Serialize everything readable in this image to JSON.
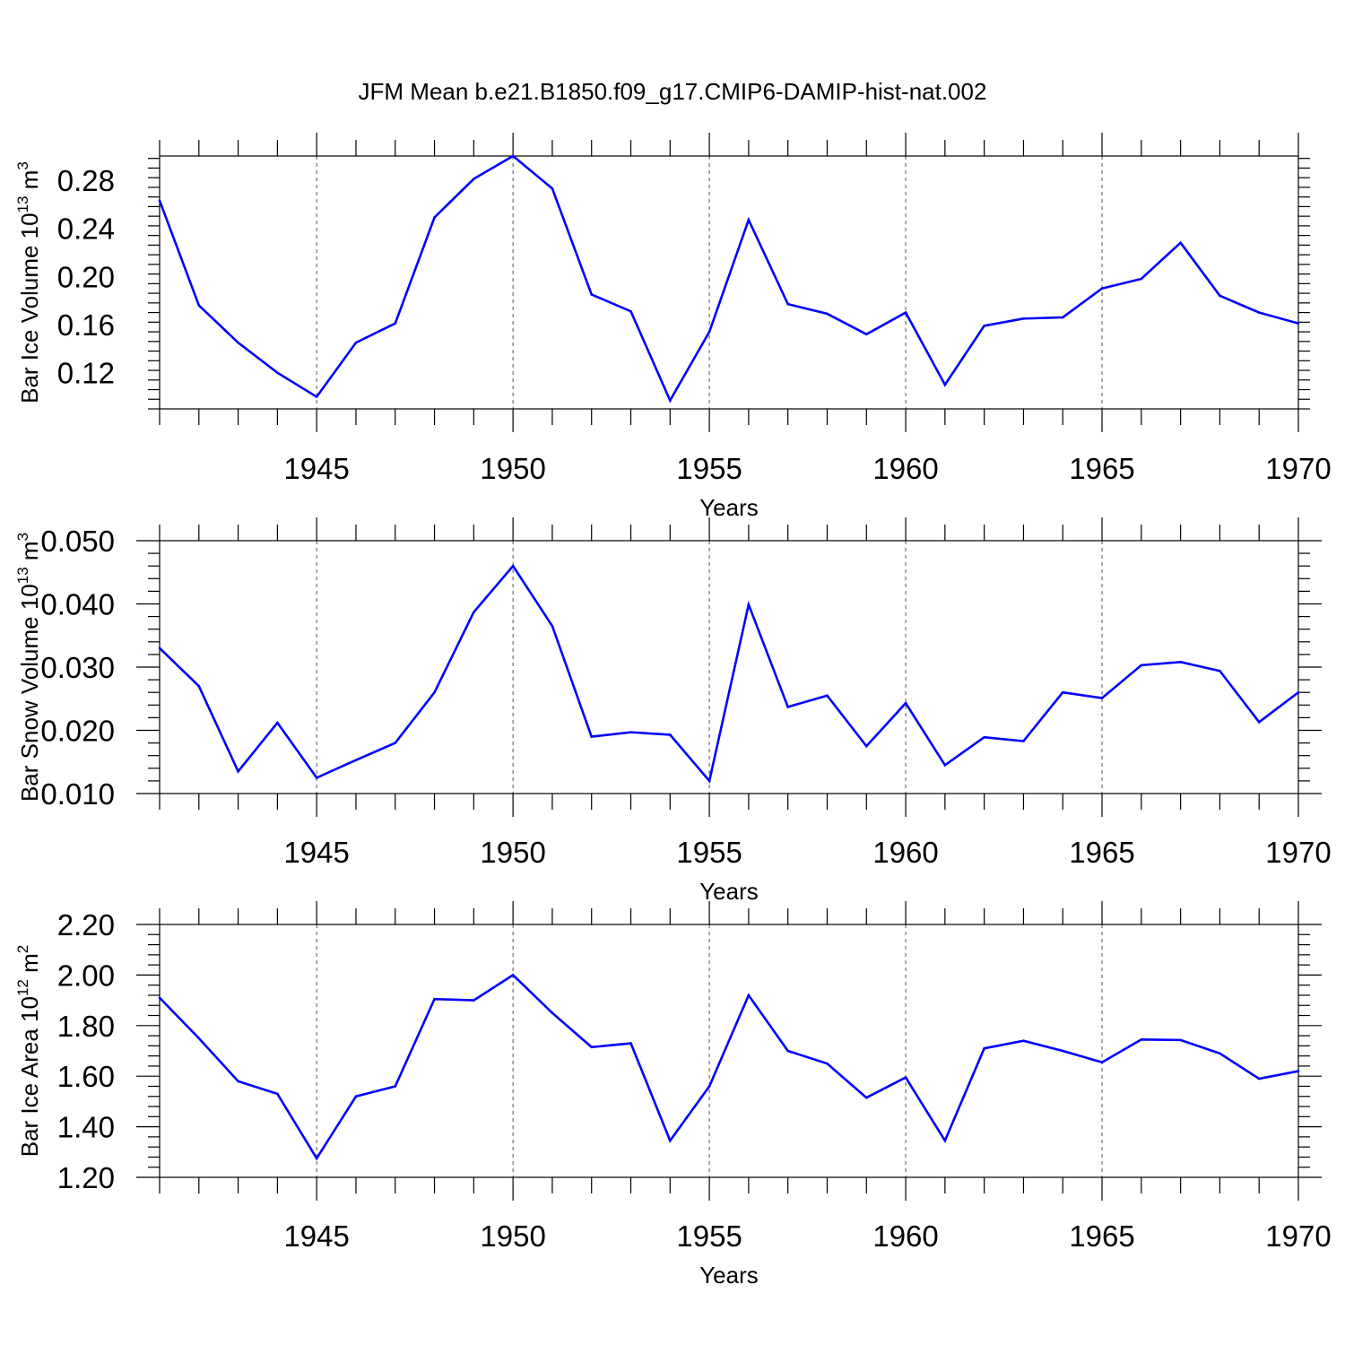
{
  "title": "JFM Mean b.e21.B1850.f09_g17.CMIP6-DAMIP-hist-nat.002",
  "colors": {
    "series": "#0000ff",
    "axes": "#000000",
    "grid": "#555555"
  },
  "chart_data": [
    {
      "type": "line",
      "ylabel": {
        "text": "Bar Ice Volume 10",
        "exp": "13",
        "unit": " m",
        "unit_exp": "3"
      },
      "xlabel": "Years",
      "xlim": [
        1941,
        1970
      ],
      "ylim": [
        0.09,
        0.3
      ],
      "yticks": [
        "0.12",
        "0.16",
        "0.20",
        "0.24",
        "0.28"
      ],
      "xticks": [
        "1945",
        "1950",
        "1955",
        "1960",
        "1965",
        "1970"
      ],
      "grid": "vertical dashed at major x ticks",
      "x": [
        1941,
        1942,
        1943,
        1944,
        1945,
        1946,
        1947,
        1948,
        1949,
        1950,
        1951,
        1952,
        1953,
        1954,
        1955,
        1956,
        1957,
        1958,
        1959,
        1960,
        1961,
        1962,
        1963,
        1964,
        1965,
        1966,
        1967,
        1968,
        1969,
        1970
      ],
      "series": [
        {
          "values": [
            0.263,
            0.176,
            0.145,
            0.12,
            0.1,
            0.145,
            0.161,
            0.249,
            0.281,
            0.3,
            0.273,
            0.185,
            0.171,
            0.097,
            0.154,
            0.247,
            0.177,
            0.169,
            0.152,
            0.17,
            0.11,
            0.159,
            0.165,
            0.166,
            0.19,
            0.198,
            0.228,
            0.184,
            0.17,
            0.161
          ]
        }
      ]
    },
    {
      "type": "line",
      "ylabel": {
        "text": "Bar Snow Volume 10",
        "exp": "13",
        "unit": " m",
        "unit_exp": "3"
      },
      "xlabel": "Years",
      "xlim": [
        1941,
        1970
      ],
      "ylim": [
        0.01,
        0.05
      ],
      "yticks": [
        "0.010",
        "0.020",
        "0.030",
        "0.040",
        "0.050"
      ],
      "xticks": [
        "1945",
        "1950",
        "1955",
        "1960",
        "1965",
        "1970"
      ],
      "grid": "vertical dashed at major x ticks",
      "x": [
        1941,
        1942,
        1943,
        1944,
        1945,
        1946,
        1947,
        1948,
        1949,
        1950,
        1951,
        1952,
        1953,
        1954,
        1955,
        1956,
        1957,
        1958,
        1959,
        1960,
        1961,
        1962,
        1963,
        1964,
        1965,
        1966,
        1967,
        1968,
        1969,
        1970
      ],
      "series": [
        {
          "values": [
            0.033,
            0.027,
            0.0135,
            0.0212,
            0.0125,
            0.0153,
            0.018,
            0.026,
            0.0387,
            0.046,
            0.0365,
            0.019,
            0.0197,
            0.0193,
            0.012,
            0.0399,
            0.0237,
            0.0255,
            0.0175,
            0.0243,
            0.0145,
            0.0189,
            0.0183,
            0.026,
            0.0251,
            0.0303,
            0.0308,
            0.0294,
            0.0213,
            0.026
          ]
        }
      ]
    },
    {
      "type": "line",
      "ylabel": {
        "text": "Bar Ice Area 10",
        "exp": "12",
        "unit": " m",
        "unit_exp": "2"
      },
      "xlabel": "Years",
      "xlim": [
        1941,
        1970
      ],
      "ylim": [
        1.2,
        2.2
      ],
      "yticks": [
        "1.20",
        "1.40",
        "1.60",
        "1.80",
        "2.00",
        "2.20"
      ],
      "xticks": [
        "1945",
        "1950",
        "1955",
        "1960",
        "1965",
        "1970"
      ],
      "grid": "vertical dashed at major x ticks",
      "x": [
        1941,
        1942,
        1943,
        1944,
        1945,
        1946,
        1947,
        1948,
        1949,
        1950,
        1951,
        1952,
        1953,
        1954,
        1955,
        1956,
        1957,
        1958,
        1959,
        1960,
        1961,
        1962,
        1963,
        1964,
        1965,
        1966,
        1967,
        1968,
        1969,
        1970
      ],
      "series": [
        {
          "values": [
            1.91,
            1.75,
            1.58,
            1.53,
            1.275,
            1.52,
            1.56,
            1.905,
            1.9,
            2.0,
            1.85,
            1.715,
            1.73,
            1.345,
            1.56,
            1.92,
            1.7,
            1.65,
            1.515,
            1.595,
            1.345,
            1.71,
            1.74,
            1.7,
            1.655,
            1.745,
            1.743,
            1.69,
            1.59,
            1.62
          ]
        }
      ]
    }
  ]
}
